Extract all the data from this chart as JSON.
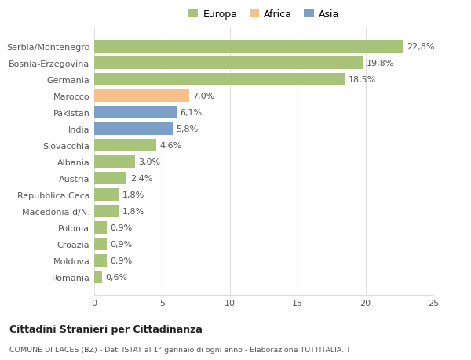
{
  "categories": [
    "Serbia/Montenegro",
    "Bosnia-Erzegovina",
    "Germania",
    "Marocco",
    "Pakistan",
    "India",
    "Slovacchia",
    "Albania",
    "Austria",
    "Repubblica Ceca",
    "Macedonia d/N.",
    "Polonia",
    "Croazia",
    "Moldova",
    "Romania"
  ],
  "values": [
    22.8,
    19.8,
    18.5,
    7.0,
    6.1,
    5.8,
    4.6,
    3.0,
    2.4,
    1.8,
    1.8,
    0.9,
    0.9,
    0.9,
    0.6
  ],
  "labels": [
    "22,8%",
    "19,8%",
    "18,5%",
    "7,0%",
    "6,1%",
    "5,8%",
    "4,6%",
    "3,0%",
    "2,4%",
    "1,8%",
    "1,8%",
    "0,9%",
    "0,9%",
    "0,9%",
    "0,6%"
  ],
  "colors": [
    "#a8c47a",
    "#a8c47a",
    "#a8c47a",
    "#f5c08a",
    "#7b9fc7",
    "#7b9fc7",
    "#a8c47a",
    "#a8c47a",
    "#a8c47a",
    "#a8c47a",
    "#a8c47a",
    "#a8c47a",
    "#a8c47a",
    "#a8c47a",
    "#a8c47a"
  ],
  "legend_labels": [
    "Europa",
    "Africa",
    "Asia"
  ],
  "legend_colors": [
    "#a8c47a",
    "#f5c08a",
    "#7b9fc7"
  ],
  "title": "Cittadini Stranieri per Cittadinanza",
  "subtitle": "COMUNE DI LACES (BZ) - Dati ISTAT al 1° gennaio di ogni anno - Elaborazione TUTTITALIA.IT",
  "xlim": [
    0,
    25
  ],
  "xticks": [
    0,
    5,
    10,
    15,
    20,
    25
  ],
  "background_color": "#ffffff",
  "grid_color": "#dddddd",
  "bar_height": 0.75,
  "label_fontsize": 8,
  "ytick_fontsize": 8,
  "xtick_fontsize": 8
}
